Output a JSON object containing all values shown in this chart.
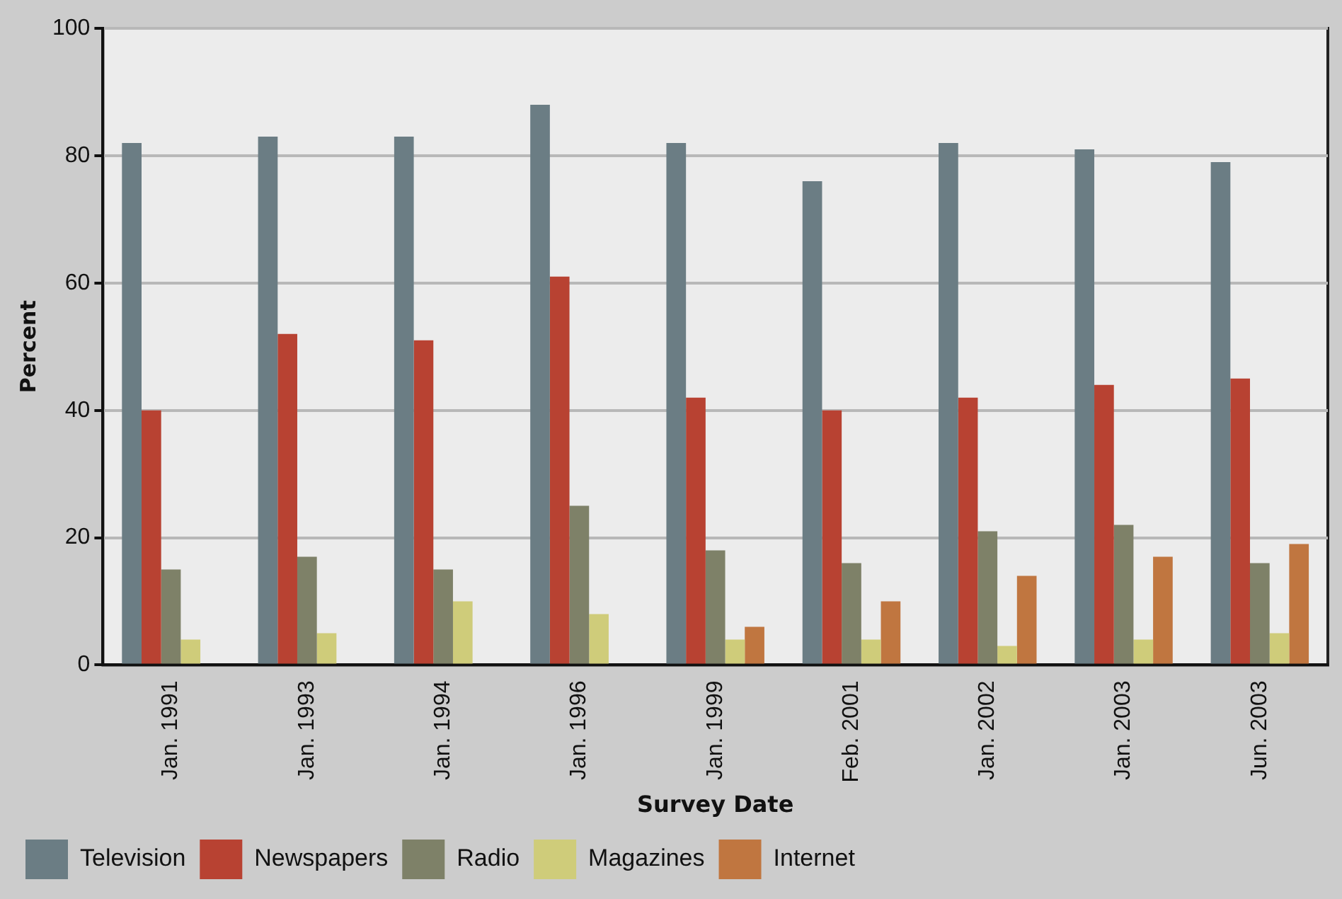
{
  "chart_data": {
    "type": "bar",
    "xlabel": "Survey Date",
    "ylabel": "Percent",
    "categories": [
      "Jan. 1991",
      "Jan. 1993",
      "Jan. 1994",
      "Jan. 1996",
      "Jan. 1999",
      "Feb. 2001",
      "Jan. 2002",
      "Jan. 2003",
      "Jun. 2003"
    ],
    "series": [
      {
        "name": "Television",
        "color": "#6b7d84",
        "values": [
          82,
          83,
          83,
          88,
          82,
          76,
          82,
          81,
          79
        ]
      },
      {
        "name": "Newspapers",
        "color": "#b84232",
        "values": [
          40,
          52,
          51,
          61,
          42,
          40,
          42,
          44,
          45
        ]
      },
      {
        "name": "Radio",
        "color": "#7e8168",
        "values": [
          15,
          17,
          15,
          25,
          18,
          16,
          21,
          22,
          16
        ]
      },
      {
        "name": "Magazines",
        "color": "#cfcc7a",
        "values": [
          4,
          5,
          10,
          8,
          4,
          4,
          3,
          4,
          5
        ]
      },
      {
        "name": "Internet",
        "color": "#c07640",
        "values": [
          null,
          null,
          null,
          null,
          6,
          10,
          14,
          17,
          19
        ]
      }
    ],
    "ylim": [
      0,
      100
    ],
    "yticks": [
      0,
      20,
      40,
      60,
      80,
      100
    ],
    "grid": "y",
    "legend": "bottom left"
  }
}
